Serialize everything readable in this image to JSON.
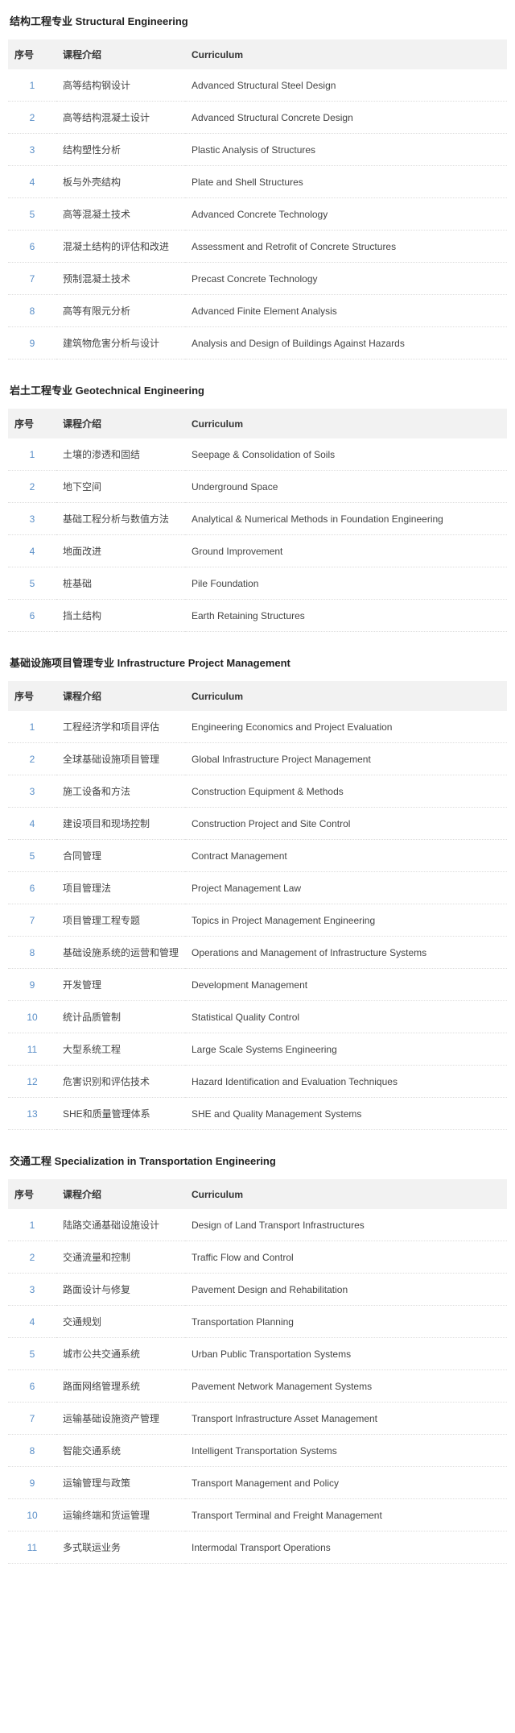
{
  "columns": {
    "idx": "序号",
    "intro": "课程介绍",
    "curriculum": "Curriculum"
  },
  "sections": [
    {
      "title": "结构工程专业 Structural Engineering",
      "rows": [
        {
          "idx": "1",
          "intro": "高等结构钢设计",
          "curr": "Advanced Structural Steel Design"
        },
        {
          "idx": "2",
          "intro": "高等结构混凝土设计",
          "curr": "Advanced Structural Concrete Design"
        },
        {
          "idx": "3",
          "intro": "结构塑性分析",
          "curr": "Plastic Analysis of Structures"
        },
        {
          "idx": "4",
          "intro": "板与外壳结构",
          "curr": "Plate and Shell Structures"
        },
        {
          "idx": "5",
          "intro": "高等混凝土技术",
          "curr": "Advanced Concrete Technology"
        },
        {
          "idx": "6",
          "intro": "混凝土结构的评估和改进",
          "curr": "Assessment and Retrofit of Concrete Structures"
        },
        {
          "idx": "7",
          "intro": "预制混凝土技术",
          "curr": "Precast Concrete Technology"
        },
        {
          "idx": "8",
          "intro": "高等有限元分析",
          "curr": "Advanced Finite Element Analysis"
        },
        {
          "idx": "9",
          "intro": "建筑物危害分析与设计",
          "curr": "Analysis and Design of Buildings Against Hazards"
        }
      ]
    },
    {
      "title": "岩土工程专业 Geotechnical Engineering",
      "rows": [
        {
          "idx": "1",
          "intro": "土壤的渗透和固结",
          "curr": "Seepage & Consolidation of Soils"
        },
        {
          "idx": "2",
          "intro": "地下空间",
          "curr": "Underground Space"
        },
        {
          "idx": "3",
          "intro": "基础工程分析与数值方法",
          "curr": "Analytical & Numerical Methods in Foundation Engineering"
        },
        {
          "idx": "4",
          "intro": "地面改进",
          "curr": "Ground Improvement"
        },
        {
          "idx": "5",
          "intro": "桩基础",
          "curr": "Pile Foundation"
        },
        {
          "idx": "6",
          "intro": "挡土结构",
          "curr": "Earth Retaining Structures"
        }
      ]
    },
    {
      "title": "基础设施项目管理专业 Infrastructure Project Management",
      "rows": [
        {
          "idx": "1",
          "intro": "工程经济学和项目评估",
          "curr": "Engineering Economics and Project Evaluation"
        },
        {
          "idx": "2",
          "intro": "全球基础设施项目管理",
          "curr": "Global Infrastructure Project Management"
        },
        {
          "idx": "3",
          "intro": "施工设备和方法",
          "curr": "Construction Equipment & Methods"
        },
        {
          "idx": "4",
          "intro": "建设项目和现场控制",
          "curr": "Construction Project and Site Control"
        },
        {
          "idx": "5",
          "intro": "合同管理",
          "curr": "Contract Management"
        },
        {
          "idx": "6",
          "intro": "项目管理法",
          "curr": "Project Management Law"
        },
        {
          "idx": "7",
          "intro": "项目管理工程专题",
          "curr": "Topics in Project Management Engineering"
        },
        {
          "idx": "8",
          "intro": "基础设施系统的运营和管理",
          "curr": "Operations and Management of Infrastructure Systems"
        },
        {
          "idx": "9",
          "intro": "开发管理",
          "curr": "Development Management"
        },
        {
          "idx": "10",
          "intro": "统计品质管制",
          "curr": "Statistical Quality Control"
        },
        {
          "idx": "11",
          "intro": "大型系统工程",
          "curr": "Large Scale Systems Engineering"
        },
        {
          "idx": "12",
          "intro": "危害识别和评估技术",
          "curr": "Hazard Identification and Evaluation Techniques"
        },
        {
          "idx": "13",
          "intro": "SHE和质量管理体系",
          "curr": "SHE and Quality Management Systems"
        }
      ]
    },
    {
      "title": "交通工程 Specialization in Transportation Engineering",
      "rows": [
        {
          "idx": "1",
          "intro": "陆路交通基础设施设计",
          "curr": "Design of Land Transport Infrastructures"
        },
        {
          "idx": "2",
          "intro": "交通流量和控制",
          "curr": "Traffic Flow and Control"
        },
        {
          "idx": "3",
          "intro": "路面设计与修复",
          "curr": "Pavement Design and Rehabilitation"
        },
        {
          "idx": "4",
          "intro": "交通规划",
          "curr": "Transportation Planning"
        },
        {
          "idx": "5",
          "intro": "城市公共交通系统",
          "curr": "Urban Public Transportation Systems"
        },
        {
          "idx": "6",
          "intro": "路面网络管理系统",
          "curr": "Pavement Network Management Systems"
        },
        {
          "idx": "7",
          "intro": "运输基础设施资产管理",
          "curr": "Transport Infrastructure Asset Management"
        },
        {
          "idx": "8",
          "intro": "智能交通系统",
          "curr": "Intelligent Transportation Systems"
        },
        {
          "idx": "9",
          "intro": "运输管理与政策",
          "curr": "Transport Management and Policy"
        },
        {
          "idx": "10",
          "intro": "运输终端和货运管理",
          "curr": "Transport Terminal and Freight Management"
        },
        {
          "idx": "11",
          "intro": "多式联运业务",
          "curr": "Intermodal Transport Operations"
        }
      ]
    }
  ]
}
